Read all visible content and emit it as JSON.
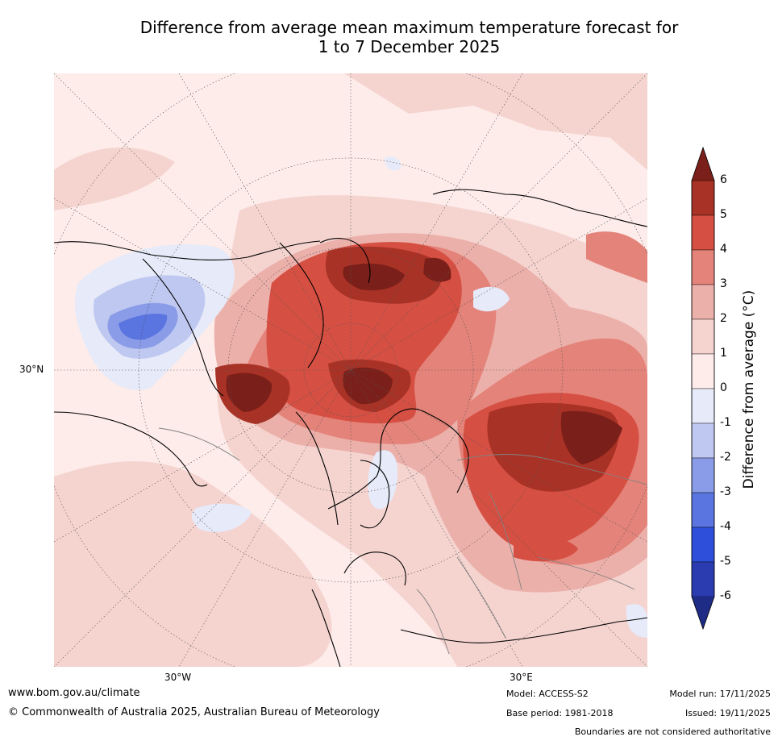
{
  "title": {
    "line1": "Difference from average mean maximum temperature forecast for",
    "line2": "1 to 7 December 2025"
  },
  "map": {
    "projection": "north polar stereographic",
    "gridlines": {
      "lat_label": "30°N",
      "lon_labels": [
        "30°W",
        "30°E"
      ]
    },
    "regions": [
      {
        "name": "warm-anomaly-siberia",
        "anomaly_c": 5.5
      },
      {
        "name": "warm-anomaly-arctic-ocean",
        "anomaly_c": 5.5
      },
      {
        "name": "warm-anomaly-canadian-arctic",
        "anomaly_c": 6
      },
      {
        "name": "warm-anomaly-eastern-europe",
        "anomaly_c": 5
      },
      {
        "name": "cool-anomaly-north-pacific",
        "anomaly_c": -3
      },
      {
        "name": "cool-anomaly-north-atlantic",
        "anomaly_c": -0.5
      }
    ]
  },
  "colorbar": {
    "label": "Difference from average (°C)",
    "ticks": [
      "6",
      "5",
      "4",
      "3",
      "2",
      "1",
      "0",
      "-1",
      "-2",
      "-3",
      "-4",
      "-5",
      "-6"
    ],
    "bins": [
      {
        "range": [
          5,
          6
        ],
        "color": "#a93226"
      },
      {
        "range": [
          4,
          5
        ],
        "color": "#d64f43"
      },
      {
        "range": [
          3,
          4
        ],
        "color": "#e4837a"
      },
      {
        "range": [
          2,
          3
        ],
        "color": "#ecb0aa"
      },
      {
        "range": [
          1,
          2
        ],
        "color": "#f5d4d0"
      },
      {
        "range": [
          0,
          1
        ],
        "color": "#fdecea"
      },
      {
        "range": [
          -1,
          0
        ],
        "color": "#e6eaf9"
      },
      {
        "range": [
          -2,
          -1
        ],
        "color": "#bfc8f0"
      },
      {
        "range": [
          -3,
          -2
        ],
        "color": "#8a9ce8"
      },
      {
        "range": [
          -4,
          -3
        ],
        "color": "#5a74e0"
      },
      {
        "range": [
          -5,
          -4
        ],
        "color": "#2d4fd9"
      },
      {
        "range": [
          -6,
          -5
        ],
        "color": "#2a3cb0"
      }
    ],
    "over_color": "#7b1f1a",
    "under_color": "#1f2c85"
  },
  "footer": {
    "website": "www.bom.gov.au/climate",
    "copyright": "© Commonwealth of Australia 2025, Australian Bureau of Meteorology",
    "model": "Model: ACCESS-S2",
    "base_period": "Base period: 1981-2018",
    "model_run": "Model run: 17/11/2025",
    "issued": "Issued: 19/11/2025",
    "disclaimer": "Boundaries are not considered authoritative"
  }
}
